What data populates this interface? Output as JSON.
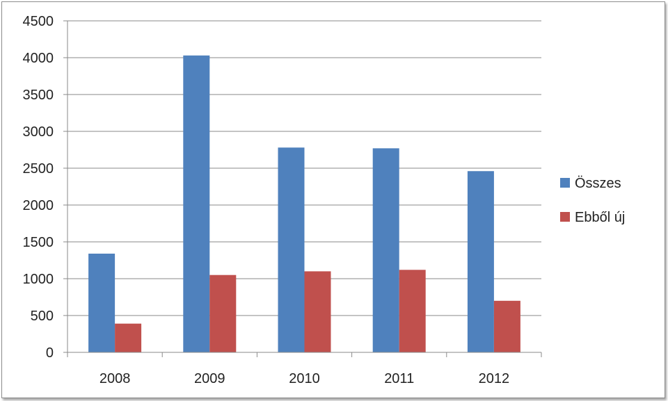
{
  "chart_data": {
    "type": "bar",
    "categories": [
      "2008",
      "2009",
      "2010",
      "2011",
      "2012"
    ],
    "series": [
      {
        "name": "Összes",
        "color": "#4f81bd",
        "values": [
          1340,
          4030,
          2780,
          2770,
          2460
        ]
      },
      {
        "name": "Ebből új",
        "color": "#c0504d",
        "values": [
          390,
          1050,
          1100,
          1120,
          700
        ]
      }
    ],
    "ylim": [
      0,
      4500
    ],
    "yticks": [
      "0",
      "500",
      "1000",
      "1500",
      "2000",
      "2500",
      "3000",
      "3500",
      "4000",
      "4500"
    ],
    "grid": true,
    "legend": "right"
  }
}
